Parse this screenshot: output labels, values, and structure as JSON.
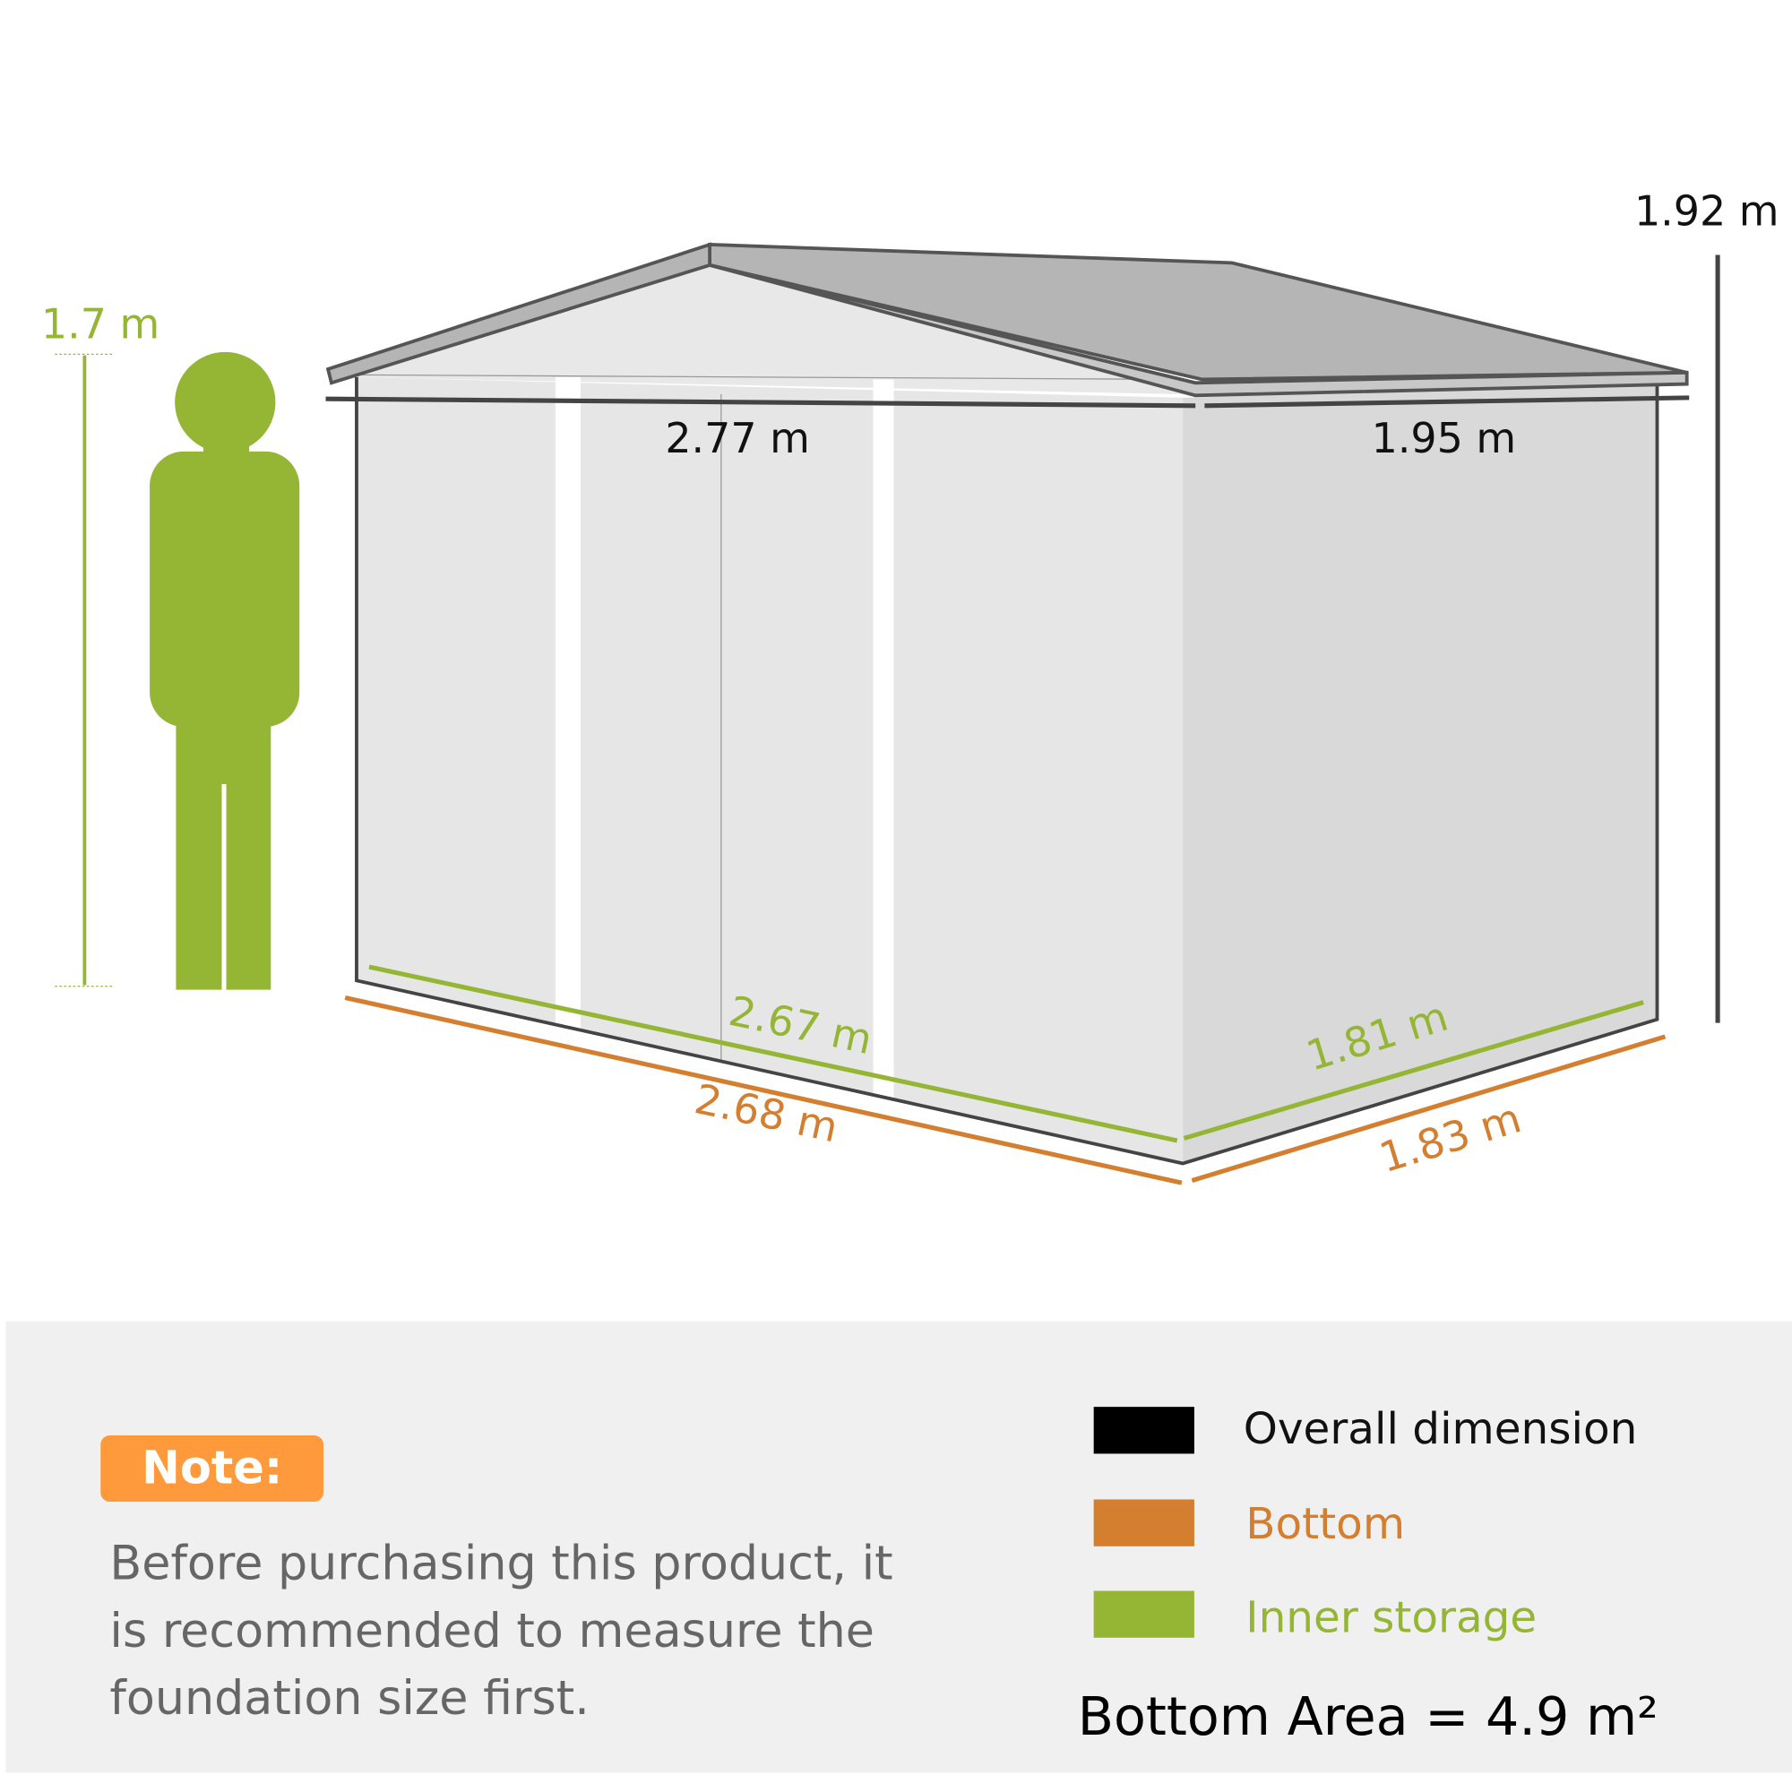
{
  "person": {
    "height_label": "1.7 m"
  },
  "shed": {
    "overall": {
      "height": "1.92 m",
      "width": "2.77 m",
      "depth": "1.95 m"
    },
    "bottom": {
      "width": "2.68 m",
      "depth": "1.83 m"
    },
    "inner": {
      "width": "2.67 m",
      "depth": "1.81 m"
    }
  },
  "note": {
    "badge": "Note:",
    "lines": [
      "Before purchasing this product, it",
      "is recommended to measure the",
      "foundation size first."
    ]
  },
  "legend": {
    "items": [
      {
        "label": "Overall dimension",
        "color": "#000000"
      },
      {
        "label": "Bottom",
        "color": "#D47E2F"
      },
      {
        "label": "Inner storage",
        "color": "#95B535"
      }
    ],
    "area": "Bottom Area = 4.9 m²"
  },
  "colors": {
    "green": "#95B535",
    "orange": "#D47E2F",
    "note_badge": "#FF9A3C",
    "panel": "#F0F0F0"
  }
}
